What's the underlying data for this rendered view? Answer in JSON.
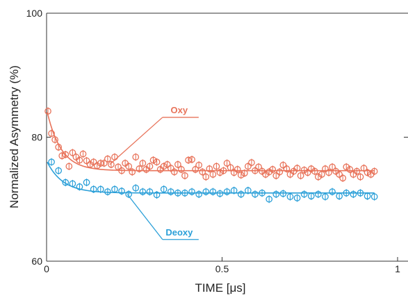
{
  "chart_data": {
    "type": "scatter",
    "xlabel": "TIME [μs]",
    "ylabel": "Normalized Asymmetry (%)",
    "xlim": [
      0,
      1
    ],
    "ylim": [
      60,
      100
    ],
    "x_ticks": [
      0,
      0.5,
      1
    ],
    "x_tick_labels": [
      "0",
      "0.5",
      "1"
    ],
    "y_ticks": [
      60,
      80,
      100
    ],
    "y_tick_labels": [
      "60",
      "80",
      "100"
    ],
    "grid": false,
    "legend": "annotations",
    "series": [
      {
        "name": "Oxy",
        "color": "#e8735a",
        "marker": "open-circle-with-errorbar",
        "annotation": {
          "text": "Oxy",
          "at": [
            0.18,
            75.6
          ],
          "label_at": [
            0.37,
            83.2
          ]
        },
        "fit": {
          "y0": 84.5,
          "y_inf": 74.6,
          "tau": 0.04
        },
        "x": [
          0.004,
          0.014,
          0.024,
          0.034,
          0.044,
          0.054,
          0.064,
          0.074,
          0.084,
          0.094,
          0.104,
          0.114,
          0.124,
          0.134,
          0.144,
          0.154,
          0.164,
          0.174,
          0.184,
          0.194,
          0.204,
          0.214,
          0.224,
          0.234,
          0.244,
          0.254,
          0.264,
          0.274,
          0.284,
          0.294,
          0.304,
          0.314,
          0.324,
          0.334,
          0.344,
          0.354,
          0.364,
          0.374,
          0.384,
          0.394,
          0.404,
          0.414,
          0.424,
          0.434,
          0.444,
          0.454,
          0.464,
          0.474,
          0.484,
          0.494,
          0.504,
          0.514,
          0.524,
          0.534,
          0.544,
          0.554,
          0.564,
          0.574,
          0.584,
          0.594,
          0.604,
          0.614,
          0.624,
          0.634,
          0.644,
          0.654,
          0.664,
          0.674,
          0.684,
          0.694,
          0.704,
          0.714,
          0.724,
          0.734,
          0.744,
          0.754,
          0.764,
          0.774,
          0.784,
          0.794,
          0.804,
          0.814,
          0.824,
          0.834,
          0.844,
          0.854,
          0.864,
          0.874,
          0.884,
          0.894,
          0.904,
          0.914,
          0.924,
          0.934
        ],
        "y": [
          84.2,
          80.6,
          79.6,
          78.4,
          77.0,
          77.2,
          75.3,
          77.5,
          76.8,
          76.3,
          77.3,
          76.2,
          75.6,
          76.0,
          75.4,
          75.8,
          75.8,
          76.5,
          75.6,
          76.8,
          75.2,
          74.6,
          75.8,
          75.3,
          74.4,
          76.8,
          74.9,
          75.8,
          74.8,
          75.3,
          76.3,
          76.0,
          74.8,
          75.3,
          75.6,
          75.0,
          74.4,
          75.6,
          74.8,
          73.8,
          76.3,
          76.4,
          74.8,
          75.5,
          74.4,
          73.6,
          74.9,
          74.0,
          75.3,
          74.3,
          74.6,
          75.8,
          75.1,
          74.3,
          74.8,
          73.9,
          74.2,
          75.3,
          75.9,
          74.6,
          75.2,
          74.5,
          74.0,
          74.4,
          74.8,
          73.8,
          74.4,
          75.5,
          74.9,
          74.0,
          74.5,
          75.0,
          73.8,
          74.7,
          74.3,
          74.9,
          74.5,
          73.6,
          74.0,
          74.9,
          74.3,
          75.2,
          74.5,
          74.0,
          73.4,
          75.2,
          74.8,
          74.0,
          74.5,
          73.6,
          75.0,
          74.3,
          74.0,
          74.5
        ]
      },
      {
        "name": "Deoxy",
        "color": "#2a9fd8",
        "marker": "open-circle-with-errorbar",
        "annotation": {
          "text": "Deoxy",
          "at": [
            0.23,
            70.8
          ],
          "label_at": [
            0.37,
            63.5
          ]
        },
        "fit": {
          "y0": 76.2,
          "y_inf": 71.0,
          "tau": 0.045
        },
        "x": [
          0.014,
          0.034,
          0.054,
          0.074,
          0.094,
          0.114,
          0.134,
          0.154,
          0.174,
          0.194,
          0.214,
          0.234,
          0.254,
          0.274,
          0.294,
          0.314,
          0.334,
          0.354,
          0.374,
          0.394,
          0.414,
          0.434,
          0.454,
          0.474,
          0.494,
          0.514,
          0.534,
          0.554,
          0.574,
          0.594,
          0.614,
          0.634,
          0.654,
          0.674,
          0.694,
          0.714,
          0.734,
          0.754,
          0.774,
          0.794,
          0.814,
          0.834,
          0.854,
          0.874,
          0.894,
          0.914,
          0.934
        ],
        "y": [
          76.0,
          74.6,
          72.7,
          72.5,
          72.0,
          72.7,
          71.6,
          71.6,
          71.2,
          71.6,
          71.3,
          70.8,
          71.8,
          71.2,
          71.2,
          70.7,
          71.6,
          71.2,
          71.0,
          71.0,
          71.2,
          70.8,
          71.2,
          71.2,
          70.9,
          71.2,
          71.4,
          70.8,
          71.4,
          70.8,
          71.0,
          70.0,
          70.8,
          70.9,
          70.4,
          70.2,
          70.8,
          70.5,
          70.8,
          70.4,
          71.2,
          70.5,
          71.0,
          70.8,
          71.0,
          70.5,
          70.4
        ]
      }
    ]
  }
}
